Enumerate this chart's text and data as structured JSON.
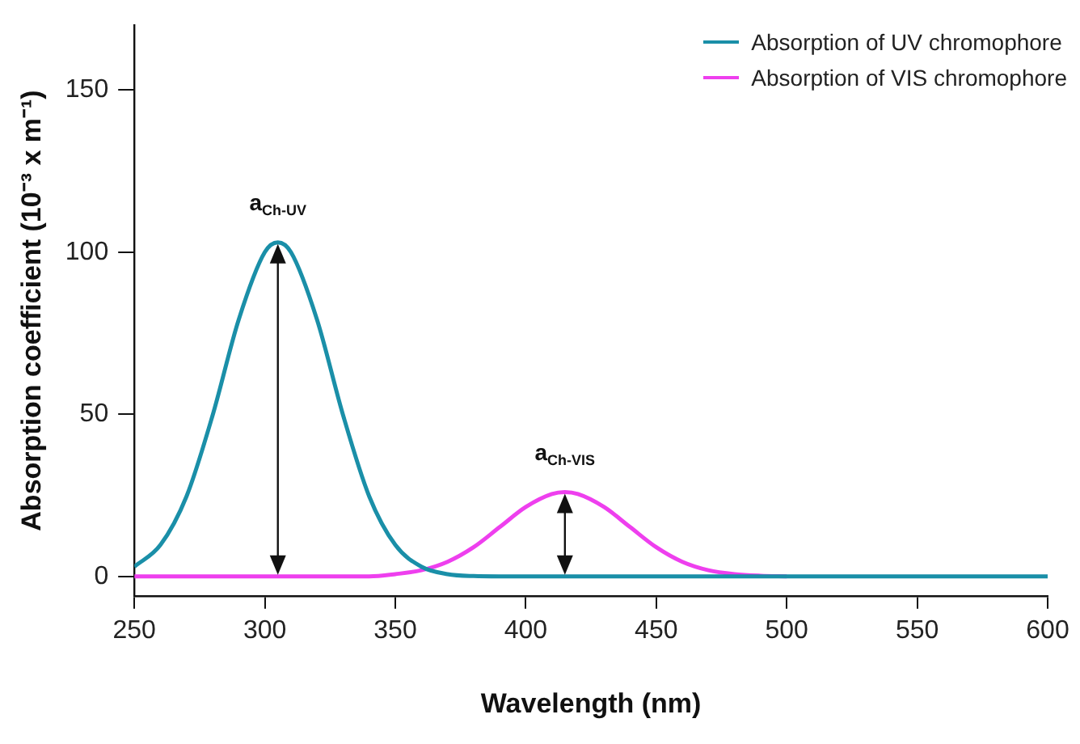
{
  "chart_data": {
    "type": "line",
    "xlabel": "Wavelength (nm)",
    "ylabel": "Absorption coefficient (10⁻³ x m⁻¹)",
    "x": [
      250,
      260,
      270,
      280,
      290,
      300,
      305,
      310,
      320,
      330,
      340,
      350,
      360,
      370,
      380,
      390,
      400,
      410,
      415,
      420,
      430,
      440,
      450,
      460,
      470,
      480,
      490,
      500,
      550,
      600
    ],
    "series": [
      {
        "name": "Absorption of UV chromophore",
        "color": "#1a8fa8",
        "values": [
          3,
          9.7,
          24.7,
          49.7,
          79.2,
          100,
          103,
          100,
          79.2,
          49.7,
          24.7,
          9.7,
          3,
          0.7,
          0.1,
          0,
          0,
          0,
          0,
          0,
          0,
          0,
          0,
          0,
          0,
          0,
          0,
          0,
          0,
          0
        ]
      },
      {
        "name": "Absorption of VIS chromophore",
        "color": "#ee3fee",
        "values": [
          0,
          0,
          0,
          0,
          0,
          0,
          0,
          0,
          0,
          0,
          0,
          0.7,
          1.9,
          4.5,
          9,
          15.2,
          21.4,
          25.4,
          26,
          25.4,
          21.4,
          15.2,
          9,
          4.5,
          1.9,
          0.7,
          0.2,
          0,
          null,
          null
        ]
      }
    ],
    "xlim": [
      250,
      600
    ],
    "xticks": [
      250,
      300,
      350,
      400,
      450,
      500,
      550,
      600
    ],
    "ylim": [
      -6,
      170
    ],
    "yticks": [
      0,
      50,
      100,
      150
    ],
    "grid": false,
    "legend": "top right",
    "marker": "none",
    "line_style": "solid",
    "annotations": [
      {
        "text": "a$_{Ch-UV}$",
        "x": 305,
        "y": 103
      },
      {
        "text": "a$_{Ch-VIS}$",
        "x": 415,
        "y": 26
      }
    ]
  }
}
